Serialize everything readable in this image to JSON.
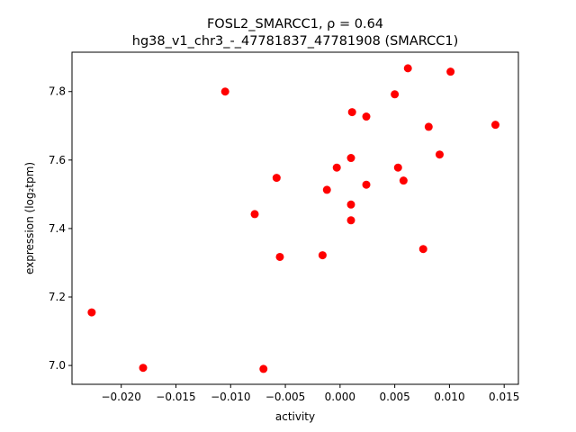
{
  "chart_data": {
    "type": "scatter",
    "title_line1": "FOSL2_SMARCC1, ρ = 0.64",
    "title_line2": "hg38_v1_chr3_-_47781837_47781908 (SMARCC1)",
    "xlabel": "activity",
    "ylabel": "expression (log₂tpm)",
    "xlim": [
      -0.0245,
      0.0163
    ],
    "ylim": [
      6.945,
      7.915
    ],
    "xticks": [
      -0.02,
      -0.015,
      -0.01,
      -0.005,
      0.0,
      0.005,
      0.01,
      0.015
    ],
    "xtick_labels": [
      "−0.020",
      "−0.015",
      "−0.010",
      "−0.005",
      "0.000",
      "0.005",
      "0.010",
      "0.015"
    ],
    "yticks": [
      7.0,
      7.2,
      7.4,
      7.6,
      7.8
    ],
    "ytick_labels": [
      "7.0",
      "7.2",
      "7.4",
      "7.6",
      "7.8"
    ],
    "grid": false,
    "marker_color": "#ff0000",
    "points": [
      {
        "x": -0.0227,
        "y": 7.155
      },
      {
        "x": -0.018,
        "y": 6.993
      },
      {
        "x": -0.0105,
        "y": 7.8
      },
      {
        "x": -0.0078,
        "y": 7.442
      },
      {
        "x": -0.007,
        "y": 6.99
      },
      {
        "x": -0.0058,
        "y": 7.548
      },
      {
        "x": -0.0055,
        "y": 7.317
      },
      {
        "x": -0.0016,
        "y": 7.322
      },
      {
        "x": -0.0012,
        "y": 7.513
      },
      {
        "x": -0.0003,
        "y": 7.578
      },
      {
        "x": 0.001,
        "y": 7.606
      },
      {
        "x": 0.001,
        "y": 7.47
      },
      {
        "x": 0.001,
        "y": 7.424
      },
      {
        "x": 0.0011,
        "y": 7.74
      },
      {
        "x": 0.0024,
        "y": 7.727
      },
      {
        "x": 0.0024,
        "y": 7.528
      },
      {
        "x": 0.005,
        "y": 7.792
      },
      {
        "x": 0.0053,
        "y": 7.578
      },
      {
        "x": 0.0058,
        "y": 7.54
      },
      {
        "x": 0.0062,
        "y": 7.868
      },
      {
        "x": 0.0076,
        "y": 7.34
      },
      {
        "x": 0.0081,
        "y": 7.697
      },
      {
        "x": 0.0091,
        "y": 7.616
      },
      {
        "x": 0.0101,
        "y": 7.858
      },
      {
        "x": 0.0142,
        "y": 7.703
      }
    ]
  }
}
